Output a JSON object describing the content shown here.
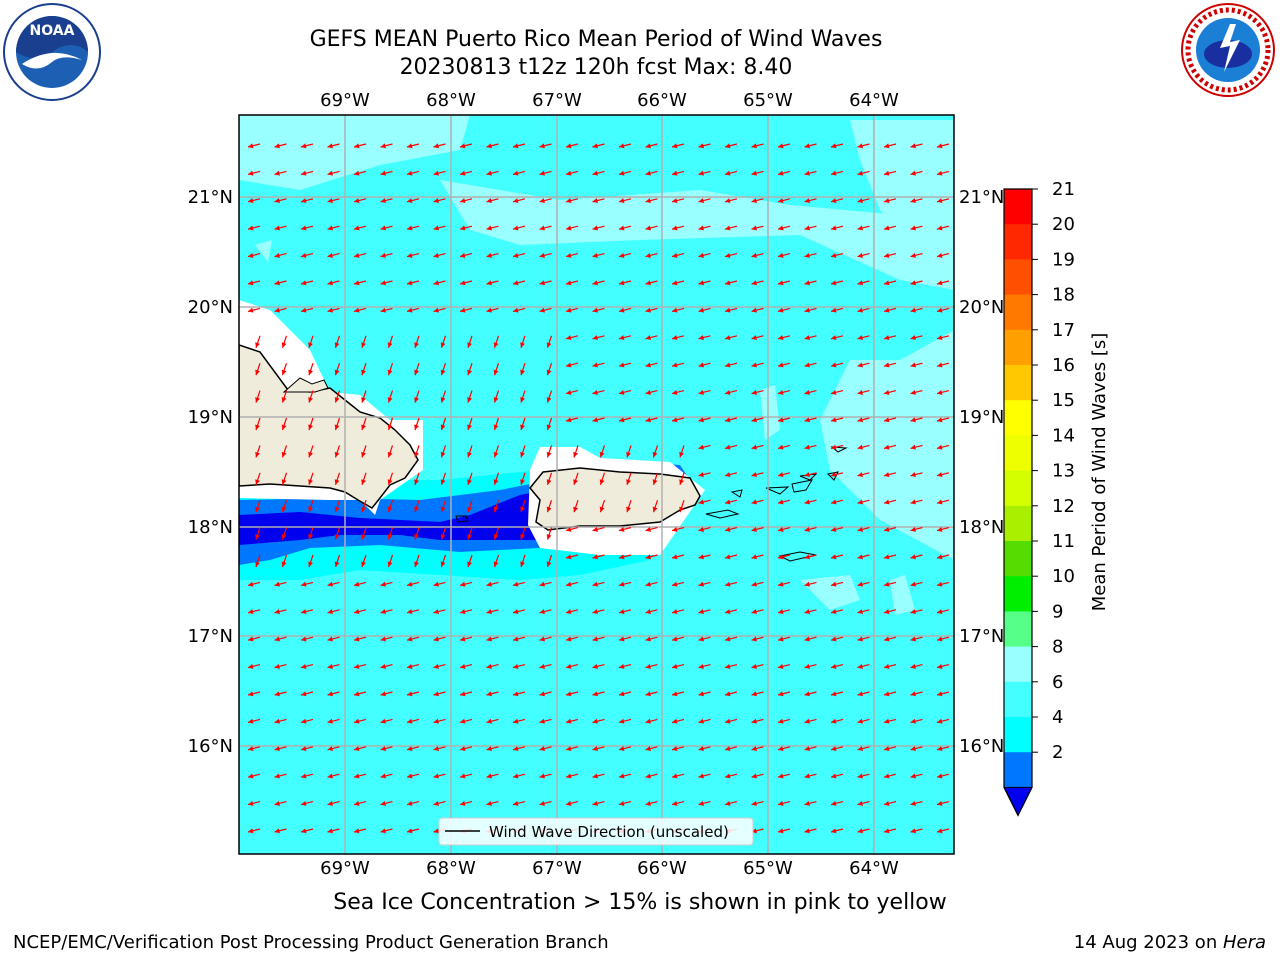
{
  "title_line1": "GEFS MEAN Puerto Rico Mean Period of Wind Waves",
  "title_line2": "20230813 t12z 120h fcst   Max: 8.40",
  "logos": {
    "left": "NOAA",
    "right": "NATIONAL WEATHER SERVICE"
  },
  "map": {
    "lon_labels": [
      "69°W",
      "68°W",
      "67°W",
      "66°W",
      "65°W",
      "64°W"
    ],
    "lat_labels": [
      "21°N",
      "20°N",
      "19°N",
      "18°N",
      "17°N",
      "16°N"
    ],
    "legend_label": "Wind Wave Direction (unscaled)",
    "colors": {
      "land": "#efecdc",
      "ocean_main": "#44ffff",
      "ocean_light": "#99ffff",
      "ocean_4_6": "#00ffff",
      "ocean_2_4": "#0077ff",
      "ocean_lt2": "#0000ee",
      "arrow": "#ff0000",
      "grid": "#b0b0b0"
    }
  },
  "colorbar": {
    "label": "Mean Period of Wind Waves [s]",
    "ticks": [
      "21",
      "20",
      "19",
      "18",
      "17",
      "16",
      "15",
      "14",
      "13",
      "12",
      "11",
      "10",
      "9",
      "8",
      "6",
      "4",
      "2"
    ],
    "colors": [
      "#ff0000",
      "#ff2800",
      "#ff5000",
      "#ff7800",
      "#ffa000",
      "#ffc800",
      "#ffff00",
      "#eeff00",
      "#d4ff00",
      "#aaee00",
      "#55dd00",
      "#00ee00",
      "#55ff88",
      "#99ffff",
      "#44ffff",
      "#00ffff",
      "#0077ff"
    ],
    "under_color": "#0000ee"
  },
  "footer_note": "Sea Ice Concentration > 15% is shown in pink to yellow",
  "credit_left": "NCEP/EMC/Verification Post Processing Product Generation Branch",
  "credit_right_prefix": "14 Aug 2023 on ",
  "credit_right_host": "Hera"
}
